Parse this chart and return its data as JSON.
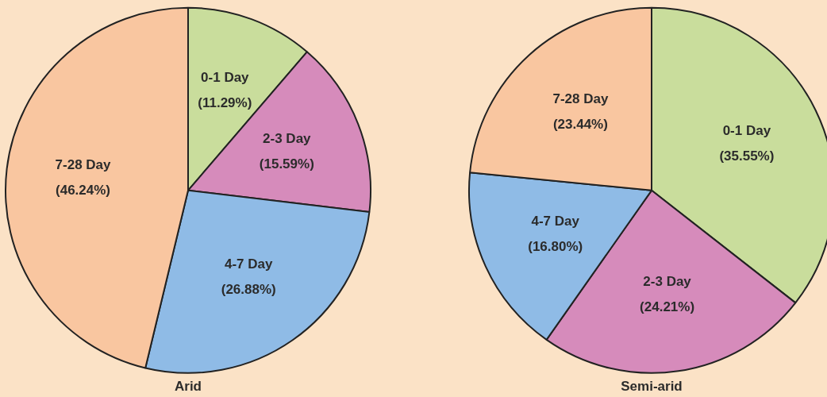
{
  "chart_data": [
    {
      "type": "pie",
      "title": "Arid",
      "categories": [
        "0-1 Day",
        "2-3 Day",
        "4-7 Day",
        "7-28 Day"
      ],
      "values": [
        11.29,
        15.59,
        26.88,
        46.24
      ],
      "value_labels": [
        "(11.29%)",
        "(15.59%)",
        "(26.88%)",
        "(46.24%)"
      ],
      "colors": [
        "#c9dd9c",
        "#d68bbb",
        "#8fbbe6",
        "#f9c6a0"
      ],
      "legend": false
    },
    {
      "type": "pie",
      "title": "Semi-arid",
      "categories": [
        "0-1 Day",
        "2-3 Day",
        "4-7 Day",
        "7-28 Day"
      ],
      "values": [
        35.55,
        24.21,
        16.8,
        23.44
      ],
      "value_labels": [
        "(35.55%)",
        "(24.21%)",
        "(16.80%)",
        "(23.44%)"
      ],
      "colors": [
        "#c9dd9c",
        "#d68bbb",
        "#8fbbe6",
        "#f9c6a0"
      ],
      "legend": false
    }
  ]
}
